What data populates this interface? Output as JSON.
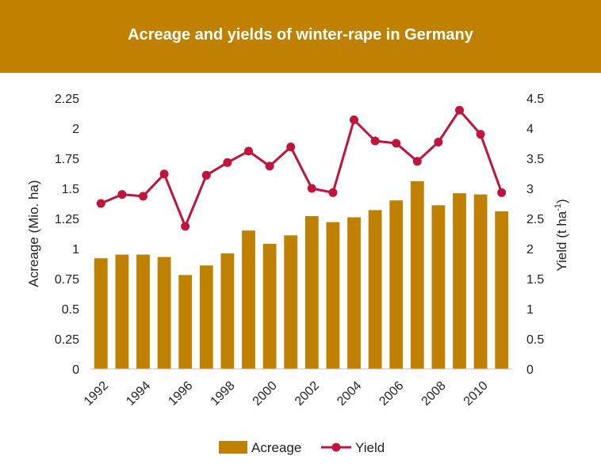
{
  "chart_data": {
    "type": "bar",
    "title": "Acreage and yields of winter-rape in Germany",
    "categories": [
      "1992",
      "1993",
      "1994",
      "1995",
      "1996",
      "1997",
      "1998",
      "1999",
      "2000",
      "2001",
      "2002",
      "2003",
      "2004",
      "2005",
      "2006",
      "2007",
      "2008",
      "2009",
      "2010",
      "2011"
    ],
    "x_tick_labels": [
      "1992",
      "1994",
      "1996",
      "1998",
      "2000",
      "2002",
      "2004",
      "2006",
      "2008",
      "2010"
    ],
    "series": [
      {
        "name": "Acreage",
        "type": "bar",
        "axis": "left",
        "values": [
          0.92,
          0.95,
          0.95,
          0.93,
          0.78,
          0.86,
          0.96,
          1.15,
          1.04,
          1.11,
          1.27,
          1.22,
          1.26,
          1.32,
          1.4,
          1.56,
          1.36,
          1.46,
          1.45,
          1.31
        ]
      },
      {
        "name": "Yield",
        "type": "line",
        "axis": "right",
        "values": [
          2.75,
          2.9,
          2.87,
          3.24,
          2.37,
          3.22,
          3.43,
          3.62,
          3.37,
          3.69,
          3.0,
          2.93,
          4.14,
          3.79,
          3.75,
          3.45,
          3.77,
          4.3,
          3.9,
          2.93
        ]
      }
    ],
    "ylabel": "Acreage (Mio. ha)",
    "y2label": "Yield (t ha-1)",
    "y2label_base": "Yield (t ha",
    "y2label_sup": "-1",
    "y2label_close": ")",
    "ylim": [
      0,
      2.25
    ],
    "y2lim": [
      0,
      4.5
    ],
    "y_ticks": [
      "0",
      "0.25",
      "0.5",
      "0.75",
      "1",
      "1.25",
      "1.5",
      "1.75",
      "2",
      "2.25"
    ],
    "y2_ticks": [
      "0",
      "0.5",
      "1",
      "1.5",
      "2",
      "2.5",
      "3",
      "3.5",
      "4",
      "4.5"
    ],
    "grid": false,
    "legend_position": "bottom",
    "colors": {
      "bar": "#c08000",
      "line": "#c0143c",
      "banner": "#c08000",
      "axis": "#bfbfbf"
    }
  }
}
